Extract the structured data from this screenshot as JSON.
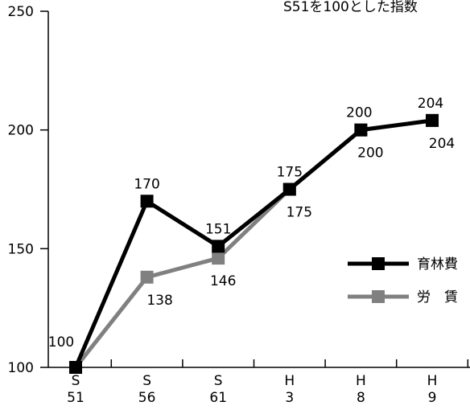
{
  "chart_data": {
    "type": "line",
    "title": "S51を100とした指数",
    "x": [
      [
        "S",
        "51"
      ],
      [
        "S",
        "56"
      ],
      [
        "S",
        "61"
      ],
      [
        "H",
        "3"
      ],
      [
        "H",
        "8"
      ],
      [
        "H",
        "9"
      ]
    ],
    "yticks": [
      100,
      150,
      200,
      250
    ],
    "ylim": [
      100,
      250
    ],
    "series": [
      {
        "name": "育林費",
        "values": [
          100,
          170,
          151,
          175,
          200,
          204
        ],
        "color": "#000000",
        "label_pos": [
          "above",
          "above",
          "above",
          "above",
          "above",
          "above"
        ]
      },
      {
        "name": "労　賃",
        "values": [
          100,
          138,
          146,
          175,
          200,
          204
        ],
        "color": "#808080",
        "label_pos": [
          "none",
          "below",
          "below",
          "below",
          "below",
          "below"
        ]
      }
    ],
    "legend": "right"
  }
}
